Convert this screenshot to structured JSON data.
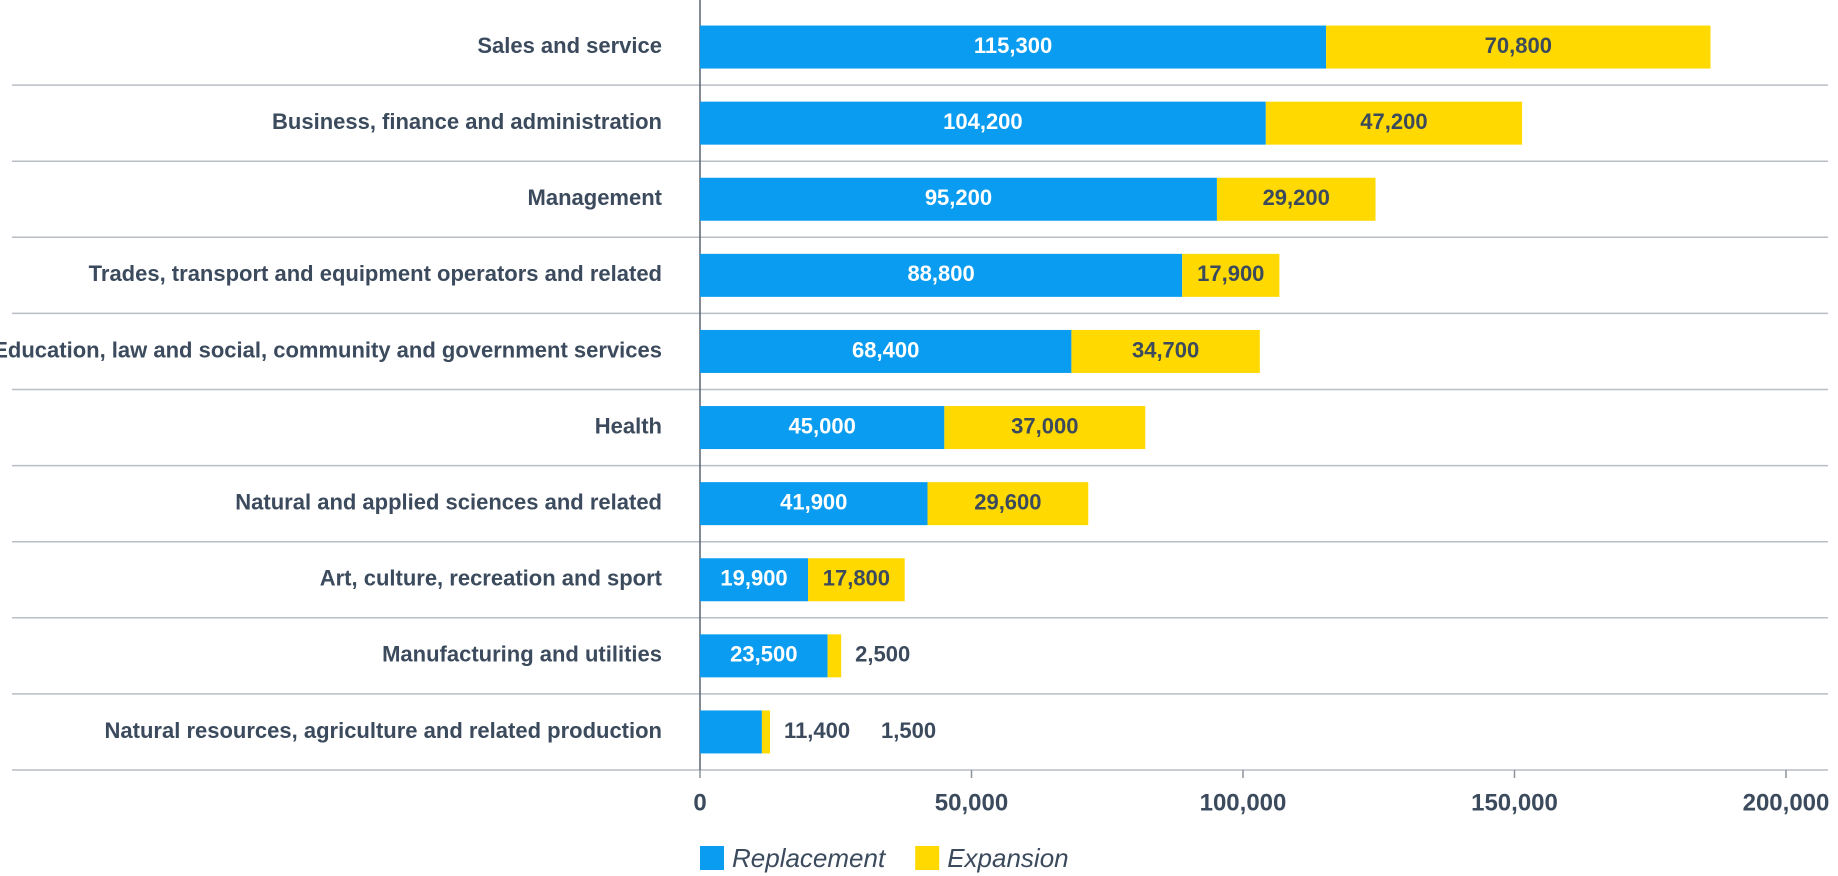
{
  "chart_data": {
    "type": "stacked-bar-horizontal",
    "categories": [
      "Sales and service",
      "Business, finance and administration",
      "Management",
      "Trades, transport and equipment operators and related",
      "Education, law and social, community and government services",
      "Health",
      "Natural and applied sciences and related",
      "Art, culture, recreation and sport",
      "Manufacturing and utilities",
      "Natural resources, agriculture and related production"
    ],
    "series": [
      {
        "name": "Replacement",
        "color": "#0a9cf0",
        "values": [
          115300,
          104200,
          95200,
          88800,
          68400,
          45000,
          41900,
          19900,
          23500,
          11400
        ],
        "value_labels": [
          "115,300",
          "104,200",
          "95,200",
          "88,800",
          "68,400",
          "45,000",
          "41,900",
          "19,900",
          "23,500",
          "11,400"
        ]
      },
      {
        "name": "Expansion",
        "color": "#ffd900",
        "values": [
          70800,
          47200,
          29200,
          17900,
          34700,
          37000,
          29600,
          17800,
          2500,
          1500
        ],
        "value_labels": [
          "70,800",
          "47,200",
          "29,200",
          "17,900",
          "34,700",
          "37,000",
          "29,600",
          "17,800",
          "2,500",
          "1,500"
        ]
      }
    ],
    "xlim": [
      0,
      200000
    ],
    "xticks": [
      0,
      {
        "value": 50000,
        "label": "50,000"
      },
      {
        "value": 100000,
        "label": "100,000"
      },
      {
        "value": 150000,
        "label": "150,000"
      },
      {
        "value": 200000,
        "label": "200,000"
      }
    ]
  }
}
